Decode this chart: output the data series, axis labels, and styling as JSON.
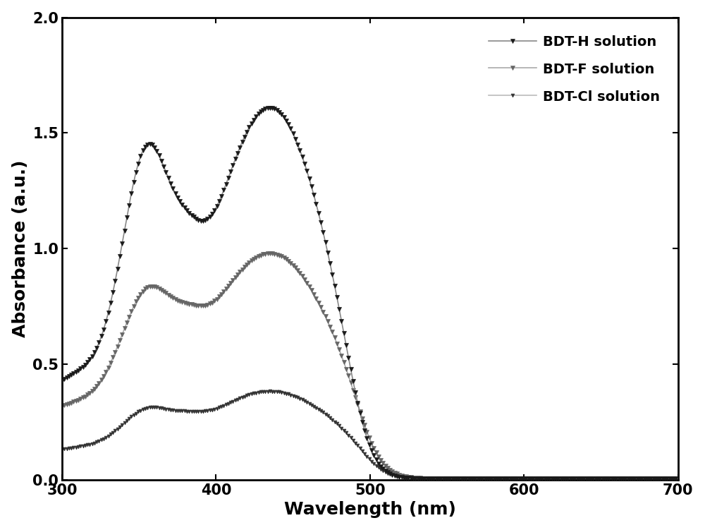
{
  "title": "",
  "xlabel": "Wavelength (nm)",
  "ylabel": "Absorbance (a.u.)",
  "xlim": [
    300,
    700
  ],
  "ylim": [
    0.0,
    2.0
  ],
  "xticks": [
    300,
    400,
    500,
    600,
    700
  ],
  "yticks": [
    0.0,
    0.5,
    1.0,
    1.5,
    2.0
  ],
  "background_color": "#ffffff",
  "series": [
    {
      "label": "BDT-H solution",
      "color": "#1a1a1a",
      "line_color": "#888888",
      "linewidth": 1.2,
      "marker": "v",
      "markersize": 5,
      "markevery": 3,
      "zorder": 3
    },
    {
      "label": "BDT-F solution",
      "color": "#666666",
      "line_color": "#aaaaaa",
      "linewidth": 1.2,
      "marker": "v",
      "markersize": 4,
      "markevery": 3,
      "zorder": 2
    },
    {
      "label": "BDT-Cl solution",
      "color": "#333333",
      "line_color": "#bbbbbb",
      "linewidth": 1.2,
      "marker": "v",
      "markersize": 3.5,
      "markevery": 3,
      "zorder": 1
    }
  ],
  "legend_fontsize": 14,
  "axis_fontsize": 18,
  "tick_fontsize": 15
}
